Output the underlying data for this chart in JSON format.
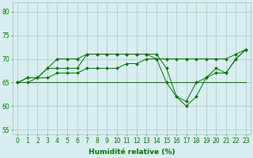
{
  "x": [
    0,
    1,
    2,
    3,
    4,
    5,
    6,
    7,
    8,
    9,
    10,
    11,
    12,
    13,
    14,
    15,
    16,
    17,
    18,
    19,
    20,
    21,
    22,
    23
  ],
  "line1": [
    65,
    66,
    66,
    68,
    70,
    70,
    70,
    71,
    71,
    71,
    71,
    71,
    71,
    71,
    71,
    68,
    62,
    60,
    62,
    66,
    68,
    67,
    70,
    72
  ],
  "line2": [
    65,
    66,
    66,
    68,
    68,
    68,
    68,
    71,
    71,
    71,
    71,
    71,
    71,
    71,
    70,
    65,
    62,
    61,
    65,
    66,
    67,
    67,
    70,
    72
  ],
  "line3": [
    65,
    65,
    66,
    66,
    67,
    67,
    67,
    68,
    68,
    68,
    68,
    69,
    69,
    70,
    70,
    70,
    70,
    70,
    70,
    70,
    70,
    70,
    71,
    72
  ],
  "line4": [
    65,
    65,
    65,
    65,
    65,
    65,
    65,
    65,
    65,
    65,
    65,
    65,
    65,
    65,
    65,
    65,
    65,
    65,
    65,
    65,
    65,
    65,
    65,
    65
  ],
  "bg_color": "#d8eef0",
  "grid_color": "#9dbfbf",
  "line_color": "#007700",
  "markersize": 2.0,
  "xlabel": "Humidité relative (%)",
  "ylim": [
    54,
    82
  ],
  "yticks": [
    55,
    60,
    65,
    70,
    75,
    80
  ],
  "xticks": [
    0,
    1,
    2,
    3,
    4,
    5,
    6,
    7,
    8,
    9,
    10,
    11,
    12,
    13,
    14,
    15,
    16,
    17,
    18,
    19,
    20,
    21,
    22,
    23
  ],
  "xlabel_fontsize": 6.5,
  "tick_fontsize": 5.5,
  "figwidth": 3.2,
  "figheight": 2.0,
  "dpi": 100
}
